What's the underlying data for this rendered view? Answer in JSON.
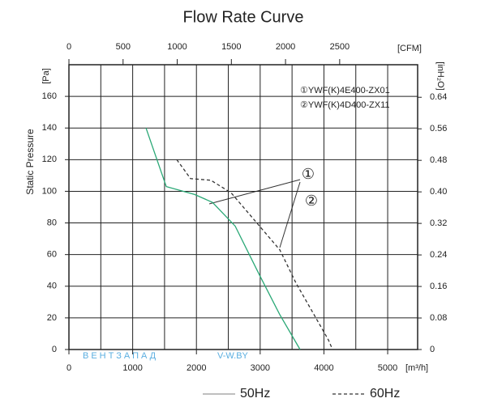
{
  "chart_data": {
    "type": "line",
    "title": "Flow Rate Curve",
    "y_label": "Static Pressure",
    "y_unit": "[Pa]",
    "x_unit": "[m³/h]",
    "x2_unit": "[CFM]",
    "y2_unit": "[inH₂O]",
    "xlim": [
      0,
      5470
    ],
    "xticks": [
      0,
      1000,
      2000,
      3000,
      4000,
      5000
    ],
    "xminor": [
      500,
      1500,
      2500,
      3500,
      4500
    ],
    "x2lim": [
      0,
      3220
    ],
    "x2ticks": [
      0,
      500,
      1000,
      1500,
      2000,
      2500
    ],
    "ylim": [
      0,
      180
    ],
    "yticks": [
      0,
      20,
      40,
      60,
      80,
      100,
      120,
      140,
      160
    ],
    "y2lim": [
      0,
      0.7226
    ],
    "y2ticks": [
      0,
      0.08,
      0.16,
      0.24,
      0.32,
      {
        "value": 0.4,
        "label": "0.40"
      },
      0.48,
      0.56,
      0.64
    ],
    "grid": true,
    "models": [
      "①YWF(K)4E400-ZX01",
      "②YWF(K)4D400-ZX11"
    ],
    "callouts": [
      "①",
      "②"
    ],
    "watermark": [
      "ВЕНТЗАПАД",
      "V-W.BY"
    ],
    "series": [
      {
        "name": "50Hz",
        "color": "#2aa876",
        "dash": false,
        "x": [
          1209,
          1527,
          1972,
          2252,
          2608,
          2990,
          3308,
          3626
        ],
        "values": [
          140,
          103,
          98,
          93,
          78,
          47,
          22,
          0
        ]
      },
      {
        "name": "60Hz",
        "color": "#333333",
        "dash": true,
        "x": [
          1692,
          1908,
          2226,
          2545,
          2990,
          3308,
          3562,
          3817,
          4071,
          4135
        ],
        "values": [
          120,
          108,
          107,
          99,
          78,
          63,
          42,
          24,
          6,
          0
        ]
      }
    ]
  }
}
